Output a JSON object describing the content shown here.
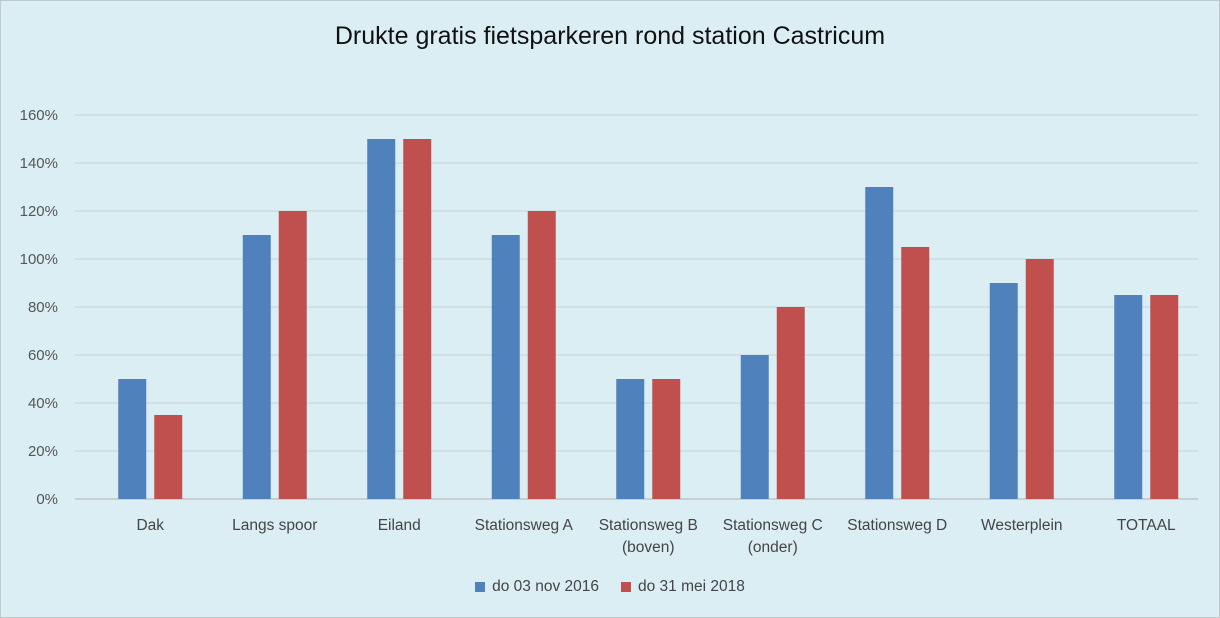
{
  "chart_data": {
    "type": "bar",
    "title": "Drukte gratis fietsparkeren rond station Castricum",
    "xlabel": "",
    "ylabel": "",
    "categories": [
      [
        "Dak"
      ],
      [
        "Langs spoor"
      ],
      [
        "Eiland"
      ],
      [
        "Stationsweg A"
      ],
      [
        "Stationsweg B",
        "(boven)"
      ],
      [
        "Stationsweg C",
        "(onder)"
      ],
      [
        "Stationsweg D"
      ],
      [
        "Westerplein"
      ],
      [
        "TOTAAL"
      ]
    ],
    "series": [
      {
        "name": "do 03 nov 2016",
        "color": "#4f81bd",
        "values": [
          50,
          110,
          150,
          110,
          50,
          60,
          130,
          90,
          85
        ]
      },
      {
        "name": "do 31 mei 2018",
        "color": "#c0504d",
        "values": [
          35,
          120,
          150,
          120,
          50,
          80,
          105,
          100,
          85
        ]
      }
    ],
    "ylim": [
      0,
      160
    ],
    "yticks": [
      0,
      20,
      40,
      60,
      80,
      100,
      120,
      140,
      160
    ],
    "ytick_format": "percent",
    "grid": true,
    "legend_position": "bottom",
    "gridline_color": "#c8d2d6",
    "axis_color": "#b0b0b0"
  }
}
